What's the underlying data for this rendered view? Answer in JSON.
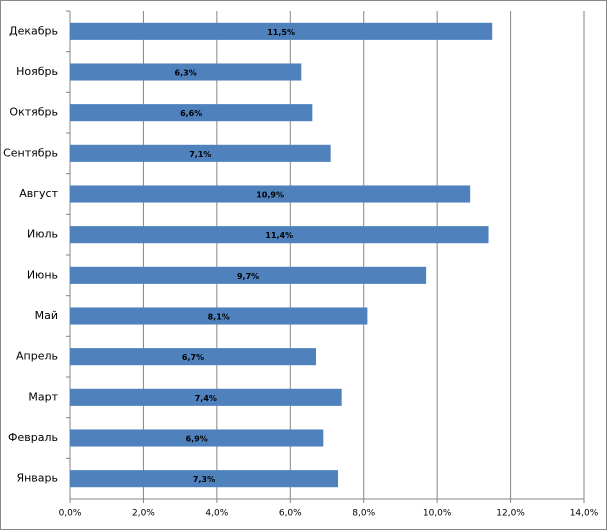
{
  "chart_data": {
    "type": "bar",
    "orientation": "horizontal",
    "categories": [
      "Декабрь",
      "Ноябрь",
      "Октябрь",
      "Сентябрь",
      "Август",
      "Июль",
      "Июнь",
      "Май",
      "Апрель",
      "Март",
      "Февраль",
      "Январь"
    ],
    "values": [
      11.5,
      6.3,
      6.6,
      7.1,
      10.9,
      11.4,
      9.7,
      8.1,
      6.7,
      7.4,
      6.9,
      7.3
    ],
    "value_labels": [
      "11,5%",
      "6,3%",
      "6,6%",
      "7,1%",
      "10,9%",
      "11,4%",
      "9,7%",
      "8,1%",
      "6,7%",
      "7,4%",
      "6,9%",
      "7,3%"
    ],
    "color": "#4f81bd",
    "xlim": [
      0,
      14
    ],
    "xticks": [
      {
        "value": 0,
        "label": "0,0%"
      },
      {
        "value": 2,
        "label": "2,0%"
      },
      {
        "value": 4,
        "label": "4,0%"
      },
      {
        "value": 6,
        "label": "6,0%"
      },
      {
        "value": 8,
        "label": "8,0%"
      },
      {
        "value": 10,
        "label": "10,0%"
      },
      {
        "value": 12,
        "label": "12,0%"
      },
      {
        "value": 14,
        "label": "14,0%"
      }
    ],
    "grid": true
  }
}
